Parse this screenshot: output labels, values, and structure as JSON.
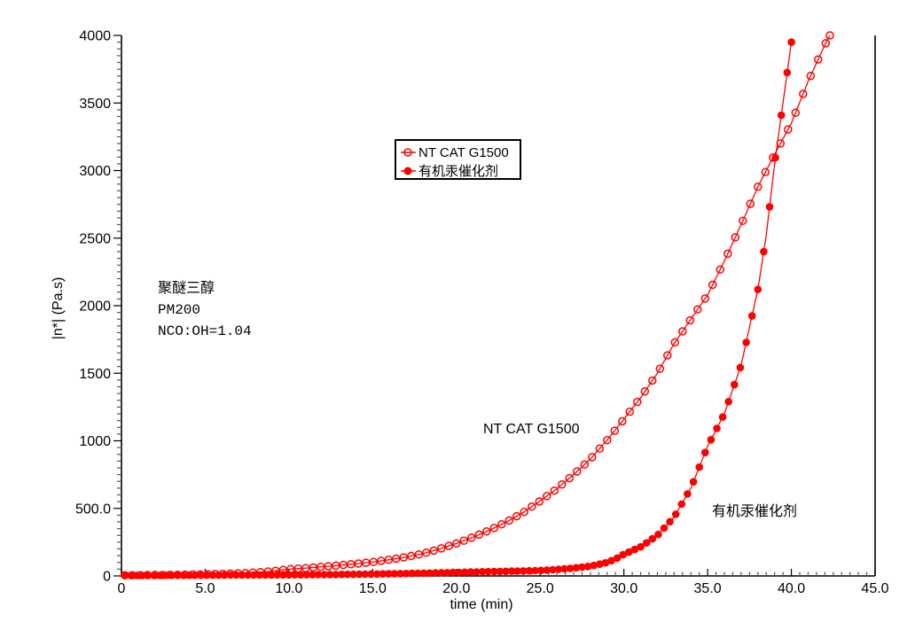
{
  "page": {
    "background": "#ffffff"
  },
  "chart_data": {
    "type": "line",
    "title": "",
    "xlabel": "time (min)",
    "ylabel": "|n*| (Pa.s)",
    "xlim": [
      0,
      45
    ],
    "ylim": [
      0,
      4000
    ],
    "x_major_tick_values": [
      0,
      5,
      10,
      15,
      20,
      25,
      30,
      35,
      40,
      45
    ],
    "x_tick_labels": [
      "0",
      "5.0",
      "10.0",
      "15.0",
      "20.0",
      "25.0",
      "30.0",
      "35.0",
      "40.0",
      "45.0"
    ],
    "x_minor_step": 0.5,
    "y_major_tick_values": [
      0,
      500,
      1000,
      1500,
      2000,
      2500,
      3000,
      3500,
      4000
    ],
    "y_tick_labels": [
      "0",
      "500.0",
      "1000",
      "1500",
      "2000",
      "2500",
      "3000",
      "3500",
      "4000"
    ],
    "y_minor_step": 50,
    "grid": false,
    "accent_color": "#ff0000",
    "axis_color": "#000000",
    "legend": {
      "position": "top-center",
      "border_color": "#000000",
      "entries": [
        {
          "label": "NT CAT G1500",
          "marker": "open-circle",
          "color": "#ff0000"
        },
        {
          "label": "有机汞催化剂",
          "marker": "filled-circle",
          "color": "#ff0000"
        }
      ]
    },
    "annotations": {
      "note_lines": [
        "聚醚三醇",
        "PM200",
        "NCO:OH=1.04"
      ],
      "curve_labels": [
        {
          "text": "NT CAT G1500",
          "x_min": 21.6,
          "y_pas": 1060
        },
        {
          "text": "有机汞催化剂",
          "x_min": 35.3,
          "y_pas": 450
        }
      ]
    },
    "series": [
      {
        "name": "NT CAT G1500",
        "marker": "open-circle",
        "color": "#ff0000",
        "marker_step_min": 0.45,
        "points": [
          [
            0.2,
            5
          ],
          [
            1,
            6
          ],
          [
            2,
            7
          ],
          [
            3,
            8
          ],
          [
            4,
            10
          ],
          [
            5,
            12
          ],
          [
            6,
            15
          ],
          [
            7,
            19
          ],
          [
            8,
            25
          ],
          [
            9,
            35
          ],
          [
            10,
            50
          ],
          [
            11,
            58
          ],
          [
            12,
            68
          ],
          [
            13,
            78
          ],
          [
            14,
            90
          ],
          [
            15,
            103
          ],
          [
            16,
            120
          ],
          [
            17,
            140
          ],
          [
            18,
            165
          ],
          [
            19,
            200
          ],
          [
            20,
            240
          ],
          [
            21,
            287
          ],
          [
            22,
            340
          ],
          [
            23,
            400
          ],
          [
            24,
            470
          ],
          [
            25,
            555
          ],
          [
            26,
            645
          ],
          [
            27,
            750
          ],
          [
            28,
            865
          ],
          [
            29,
            1005
          ],
          [
            30,
            1160
          ],
          [
            31,
            1320
          ],
          [
            32,
            1500
          ],
          [
            33,
            1720
          ],
          [
            34,
            1900
          ],
          [
            35,
            2080
          ],
          [
            36,
            2330
          ],
          [
            37,
            2600
          ],
          [
            38,
            2880
          ],
          [
            39,
            3120
          ],
          [
            40,
            3350
          ],
          [
            41,
            3660
          ],
          [
            42,
            3930
          ],
          [
            42.3,
            4000
          ]
        ]
      },
      {
        "name": "有机汞催化剂",
        "marker": "filled-circle",
        "color": "#ff0000",
        "marker_step_min": 0.35,
        "points": [
          [
            0.2,
            3
          ],
          [
            2,
            4
          ],
          [
            4,
            5
          ],
          [
            6,
            6
          ],
          [
            8,
            7
          ],
          [
            10,
            8
          ],
          [
            12,
            10
          ],
          [
            14,
            12
          ],
          [
            16,
            16
          ],
          [
            18,
            20
          ],
          [
            20,
            26
          ],
          [
            22,
            32
          ],
          [
            24,
            37
          ],
          [
            25,
            40
          ],
          [
            26,
            48
          ],
          [
            27,
            58
          ],
          [
            28,
            72
          ],
          [
            29,
            100
          ],
          [
            29.5,
            125
          ],
          [
            30,
            160
          ],
          [
            31,
            215
          ],
          [
            32,
            300
          ],
          [
            33,
            435
          ],
          [
            34,
            650
          ],
          [
            35,
            960
          ],
          [
            36,
            1200
          ],
          [
            37,
            1560
          ],
          [
            38,
            2120
          ],
          [
            38.5,
            2520
          ],
          [
            39,
            3050
          ],
          [
            39.5,
            3500
          ],
          [
            40,
            3950
          ]
        ]
      }
    ]
  }
}
